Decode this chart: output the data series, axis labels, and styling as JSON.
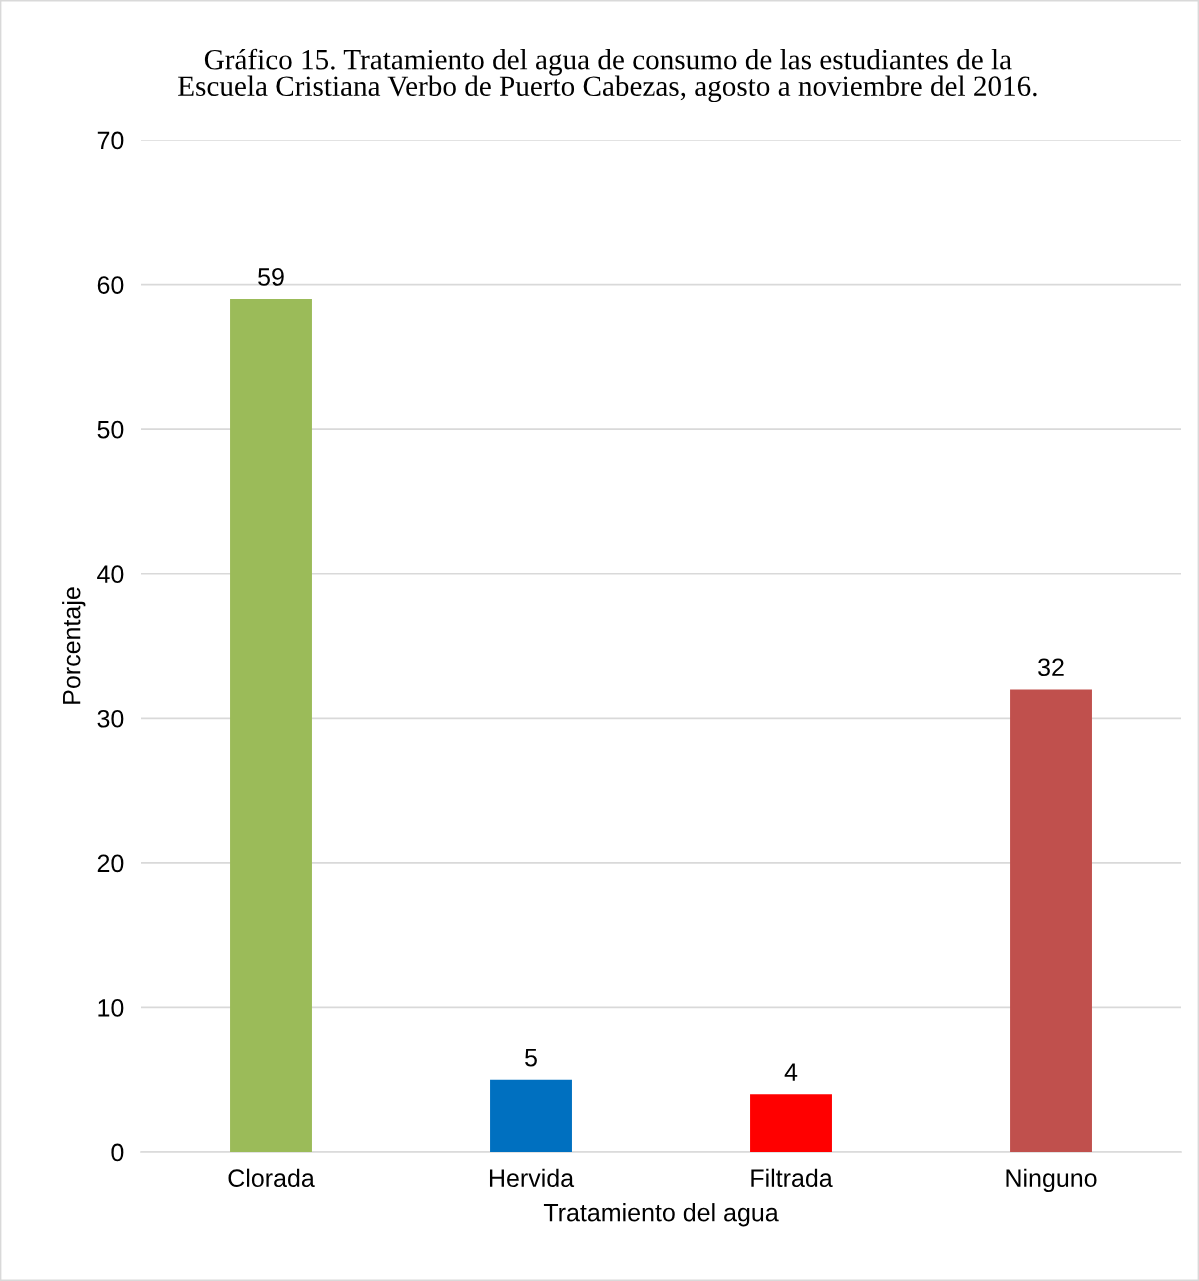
{
  "chart_data": {
    "type": "bar",
    "title": "Gráfico 15. Tratamiento del agua de consumo de las estudiantes de la\nEscuela Cristiana Verbo de Puerto Cabezas, agosto a noviembre del 2016.",
    "xlabel": "Tratamiento del agua",
    "ylabel": "Porcentaje",
    "categories": [
      "Clorada",
      "Hervida",
      "Filtrada",
      "Ninguno"
    ],
    "values": [
      59,
      5,
      4,
      32
    ],
    "colors": [
      "#9bbb59",
      "#0070c0",
      "#ff0000",
      "#c0504d"
    ],
    "ylim": [
      0,
      70
    ],
    "yticks": [
      0,
      10,
      20,
      30,
      40,
      50,
      60,
      70
    ],
    "grid": "y",
    "data_labels": true
  }
}
